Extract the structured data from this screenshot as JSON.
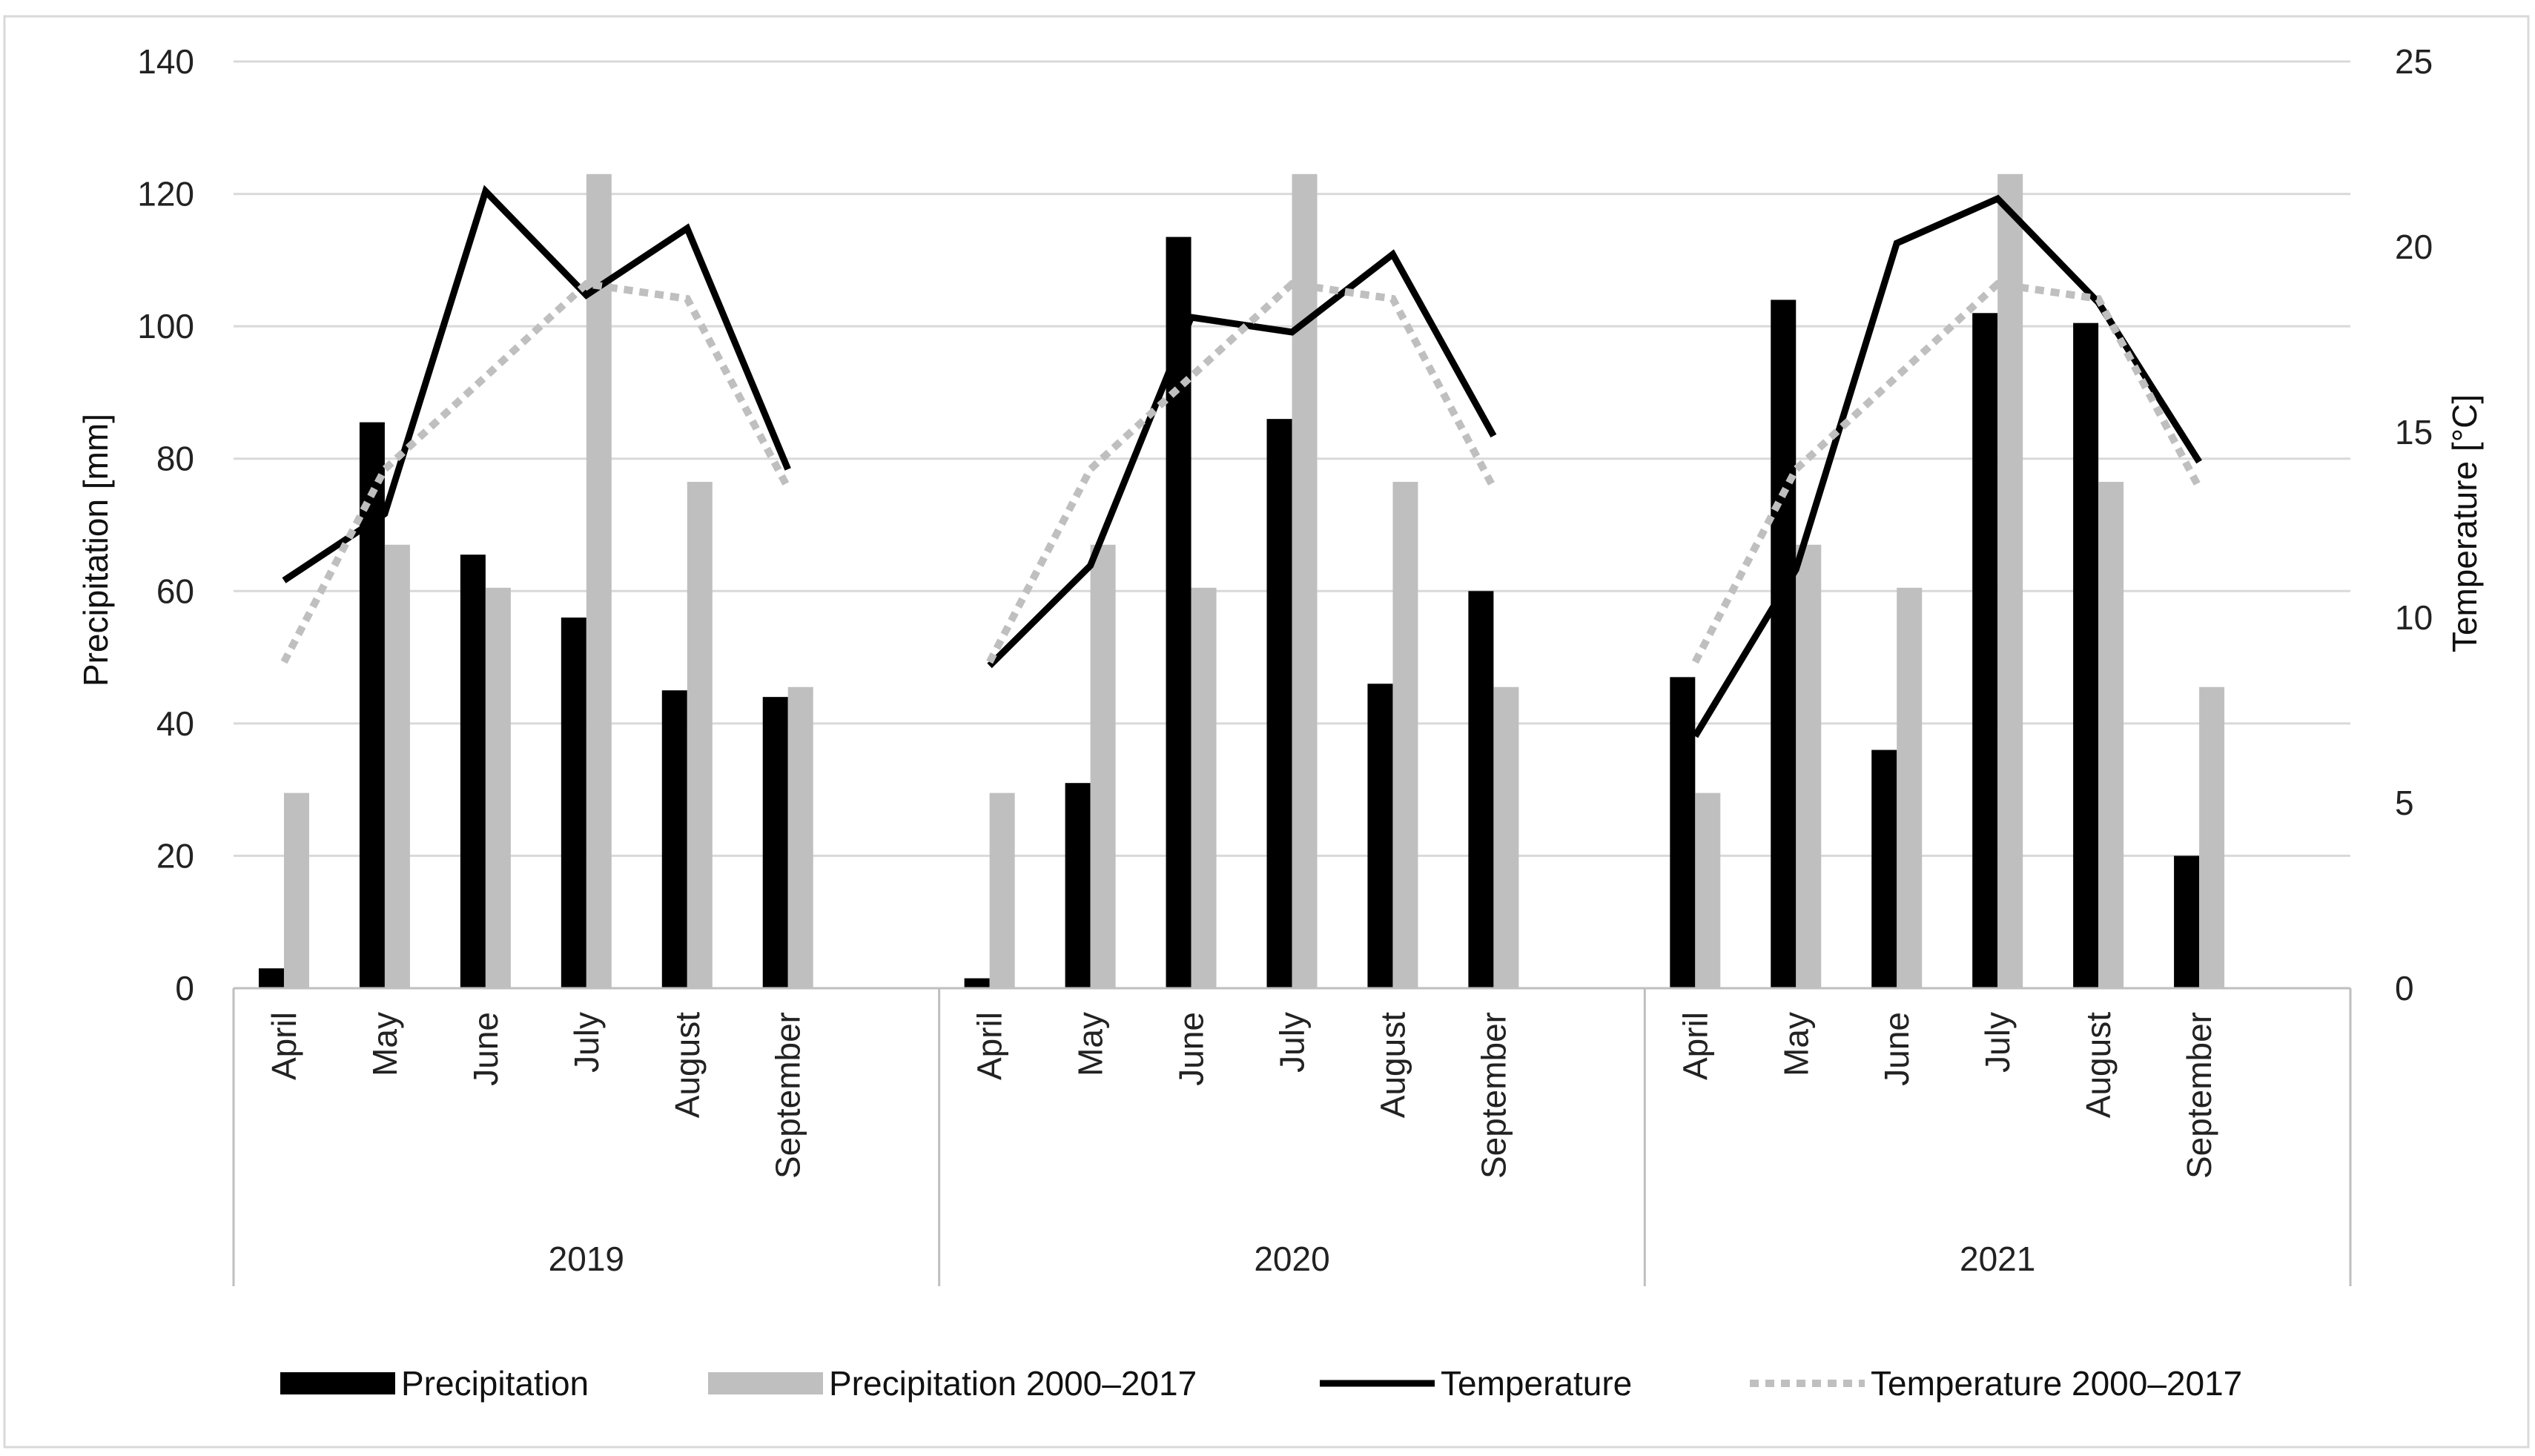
{
  "chart_data": {
    "type": "bar",
    "title": "",
    "groups": [
      "2019",
      "2020",
      "2021"
    ],
    "months": [
      "April",
      "May",
      "June",
      "July",
      "August",
      "September"
    ],
    "ylabel": "Precipitation [mm]",
    "y2label": "Temperature [°C]",
    "ylim": [
      0,
      140
    ],
    "y2lim": [
      0,
      25
    ],
    "yticks": [
      "0",
      "20",
      "40",
      "60",
      "80",
      "100",
      "120",
      "140"
    ],
    "y2ticks": [
      "0",
      "5",
      "10",
      "15",
      "20",
      "25"
    ],
    "grid": true,
    "legend_position": "bottom",
    "series": [
      {
        "name": "Precipitation",
        "kind": "bar",
        "axis": "left",
        "color": "#000000",
        "values": [
          [
            3,
            85.5,
            65.5,
            56,
            45,
            44
          ],
          [
            1.5,
            31,
            113.5,
            86,
            46,
            60
          ],
          [
            47,
            104,
            36,
            102,
            100.5,
            20
          ]
        ]
      },
      {
        "name": "Precipitation 2000–2017",
        "kind": "bar",
        "axis": "left",
        "color": "#bfbfbf",
        "values": [
          [
            29.5,
            67,
            60.5,
            123,
            76.5,
            45.5
          ],
          [
            29.5,
            67,
            60.5,
            123,
            76.5,
            45.5
          ],
          [
            29.5,
            67,
            60.5,
            123,
            76.5,
            45.5
          ]
        ]
      },
      {
        "name": "Temperature",
        "kind": "line",
        "axis": "right",
        "color": "#000000",
        "values": [
          [
            11,
            12.8,
            21.5,
            18.7,
            20.5,
            14
          ],
          [
            8.7,
            11.4,
            18.1,
            17.7,
            19.8,
            14.9
          ],
          [
            6.8,
            11.3,
            20.1,
            21.3,
            18.5,
            14.2
          ]
        ]
      },
      {
        "name": "Temperature 2000–2017",
        "kind": "line",
        "axis": "right",
        "color": "#bfbfbf",
        "dashed": true,
        "values": [
          [
            8.8,
            14,
            16.5,
            19,
            18.6,
            13.5
          ],
          [
            8.8,
            14,
            16.5,
            19,
            18.6,
            13.5
          ],
          [
            8.8,
            14,
            16.5,
            19,
            18.6,
            13.5
          ]
        ]
      }
    ]
  }
}
